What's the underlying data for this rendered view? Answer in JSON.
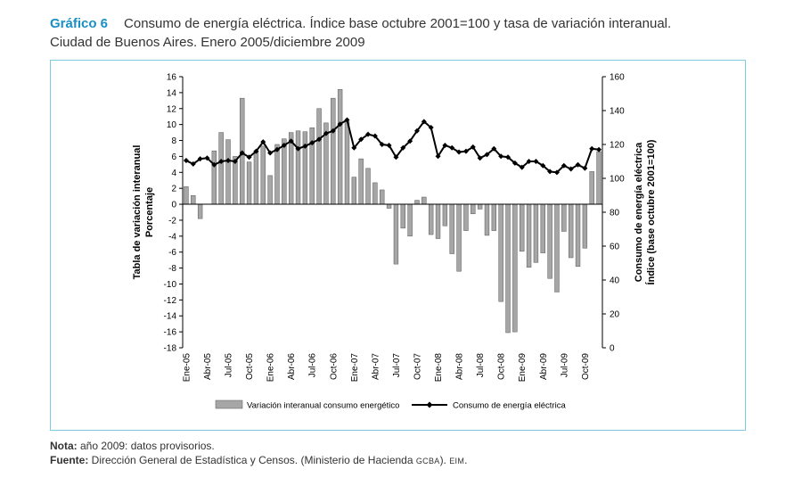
{
  "header": {
    "figure_label": "Gráfico 6",
    "title_line1": "Consumo de energía eléctrica. Índice base octubre 2001=100 y tasa de variación interanual.",
    "title_line2": "Ciudad de Buenos Aires. Enero 2005/diciembre 2009"
  },
  "footer": {
    "note_label": "Nota:",
    "note_text": " año 2009: datos provisorios.",
    "source_label": "Fuente:",
    "source_text": " Dirección General de Estadística y Censos. (Ministerio de Hacienda ",
    "source_sc1": "GCBA",
    "source_mid": "). ",
    "source_sc2": "EIM",
    "source_end": "."
  },
  "colors": {
    "bar_fill": "#a6a6a6",
    "bar_stroke": "#555555",
    "line": "#000000",
    "frame": "#7ec8e3",
    "accent": "#1a8fc4"
  },
  "chart_data": {
    "type": "bar+line",
    "y_left": {
      "label_line1": "Tabla de variación interanual",
      "label_line2": "Porcentaje",
      "min": -18,
      "max": 16,
      "step": 2
    },
    "y_right": {
      "label_line1": "Consumo de energía eléctrica",
      "label_line2": "Índice (base octubre 2001=100)",
      "min": 0,
      "max": 160,
      "step": 20
    },
    "x_tick_labels": [
      {
        "index": 0,
        "label": "Ene-05"
      },
      {
        "index": 3,
        "label": "Abr-05"
      },
      {
        "index": 6,
        "label": "Jul-05"
      },
      {
        "index": 9,
        "label": "Oct-05"
      },
      {
        "index": 12,
        "label": "Ene-06"
      },
      {
        "index": 15,
        "label": "Abr-06"
      },
      {
        "index": 18,
        "label": "Jul-06"
      },
      {
        "index": 21,
        "label": "Oct-06"
      },
      {
        "index": 24,
        "label": "Ene-07"
      },
      {
        "index": 27,
        "label": "Abr-07"
      },
      {
        "index": 30,
        "label": "Jul-07"
      },
      {
        "index": 33,
        "label": "Oct-07"
      },
      {
        "index": 36,
        "label": "Ene-08"
      },
      {
        "index": 39,
        "label": "Abr-08"
      },
      {
        "index": 42,
        "label": "Jul-08"
      },
      {
        "index": 45,
        "label": "Oct-08"
      },
      {
        "index": 48,
        "label": "Ene-09"
      },
      {
        "index": 51,
        "label": "Abr-09"
      },
      {
        "index": 54,
        "label": "Jul-09"
      },
      {
        "index": 57,
        "label": "Oct-09"
      }
    ],
    "series": [
      {
        "name": "Variación interanual consumo energético",
        "type": "bar",
        "axis": "left",
        "values": [
          2.2,
          1.1,
          -1.8,
          0,
          6.7,
          9.0,
          8.1,
          6.0,
          13.3,
          5.3,
          6.7,
          7.3,
          3.6,
          7.5,
          8.2,
          9.0,
          9.2,
          9.1,
          9.6,
          12.0,
          10.2,
          13.3,
          14.4,
          10.4,
          3.4,
          5.7,
          4.5,
          2.7,
          1.8,
          -0.5,
          -7.5,
          -3.0,
          -4.0,
          0.5,
          0.9,
          -3.8,
          -4.3,
          -2.7,
          -6.2,
          -8.4,
          -3.3,
          -1.2,
          -0.6,
          -3.9,
          -3.3,
          -12.2,
          -16.1,
          -16.0,
          -5.9,
          -7.9,
          -7.3,
          -6.1,
          -9.3,
          -11.0,
          -3.4,
          -6.7,
          -7.8,
          -5.5,
          4.1,
          6.6
        ]
      },
      {
        "name": "Consumo de energía eléctrica",
        "type": "line",
        "axis": "right",
        "values": [
          110.5,
          108.5,
          111.5,
          112.0,
          108.0,
          110.0,
          110.5,
          110.0,
          115.0,
          112.5,
          116.0,
          121.5,
          115.0,
          117.0,
          119.5,
          122.0,
          117.5,
          119.0,
          121.0,
          123.0,
          126.5,
          128.0,
          132.0,
          134.5,
          118.0,
          123.0,
          126.0,
          125.0,
          120.0,
          119.5,
          112.5,
          118.0,
          122.0,
          128.0,
          133.5,
          130.0,
          113.0,
          119.5,
          118.0,
          115.5,
          116.0,
          118.5,
          112.0,
          114.0,
          117.5,
          113.0,
          112.5,
          109.0,
          106.5,
          110.0,
          110.0,
          107.5,
          104.0,
          103.5,
          107.5,
          105.5,
          108.0,
          106.0,
          117.5,
          117.0
        ]
      }
    ],
    "legend_position": "bottom",
    "grid": false
  }
}
